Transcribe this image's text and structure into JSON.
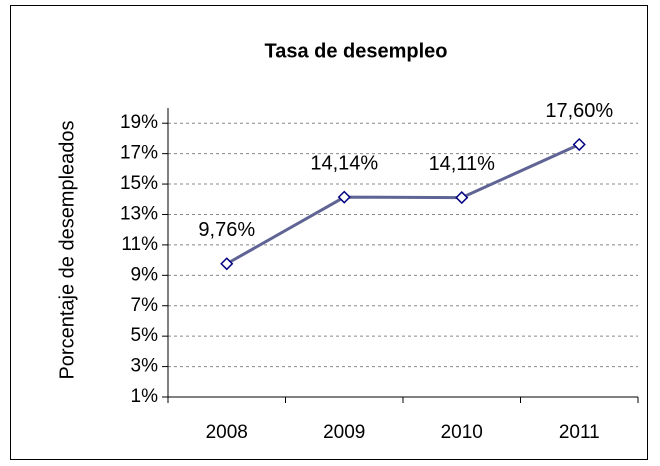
{
  "chart_data": {
    "type": "line",
    "title": "Tasa de desempleo",
    "y_label": "Porcentaje de desempleados",
    "categories": [
      "2008",
      "2009",
      "2010",
      "2011"
    ],
    "values": [
      9.76,
      14.14,
      14.11,
      17.6
    ],
    "value_labels": [
      "9,76%",
      "14,14%",
      "14,11%",
      "17,60%"
    ],
    "color": "#5f6494",
    "marker_color": "#000080",
    "ylim": [
      1,
      20
    ],
    "yticks": [
      {
        "value": 1,
        "label": "1%"
      },
      {
        "value": 3,
        "label": "3%"
      },
      {
        "value": 5,
        "label": "5%"
      },
      {
        "value": 7,
        "label": "7%"
      },
      {
        "value": 9,
        "label": "9%"
      },
      {
        "value": 11,
        "label": "11%"
      },
      {
        "value": 13,
        "label": "13%"
      },
      {
        "value": 15,
        "label": "15%"
      },
      {
        "value": 17,
        "label": "17%"
      },
      {
        "value": 19,
        "label": "19%"
      }
    ],
    "grid": true
  }
}
